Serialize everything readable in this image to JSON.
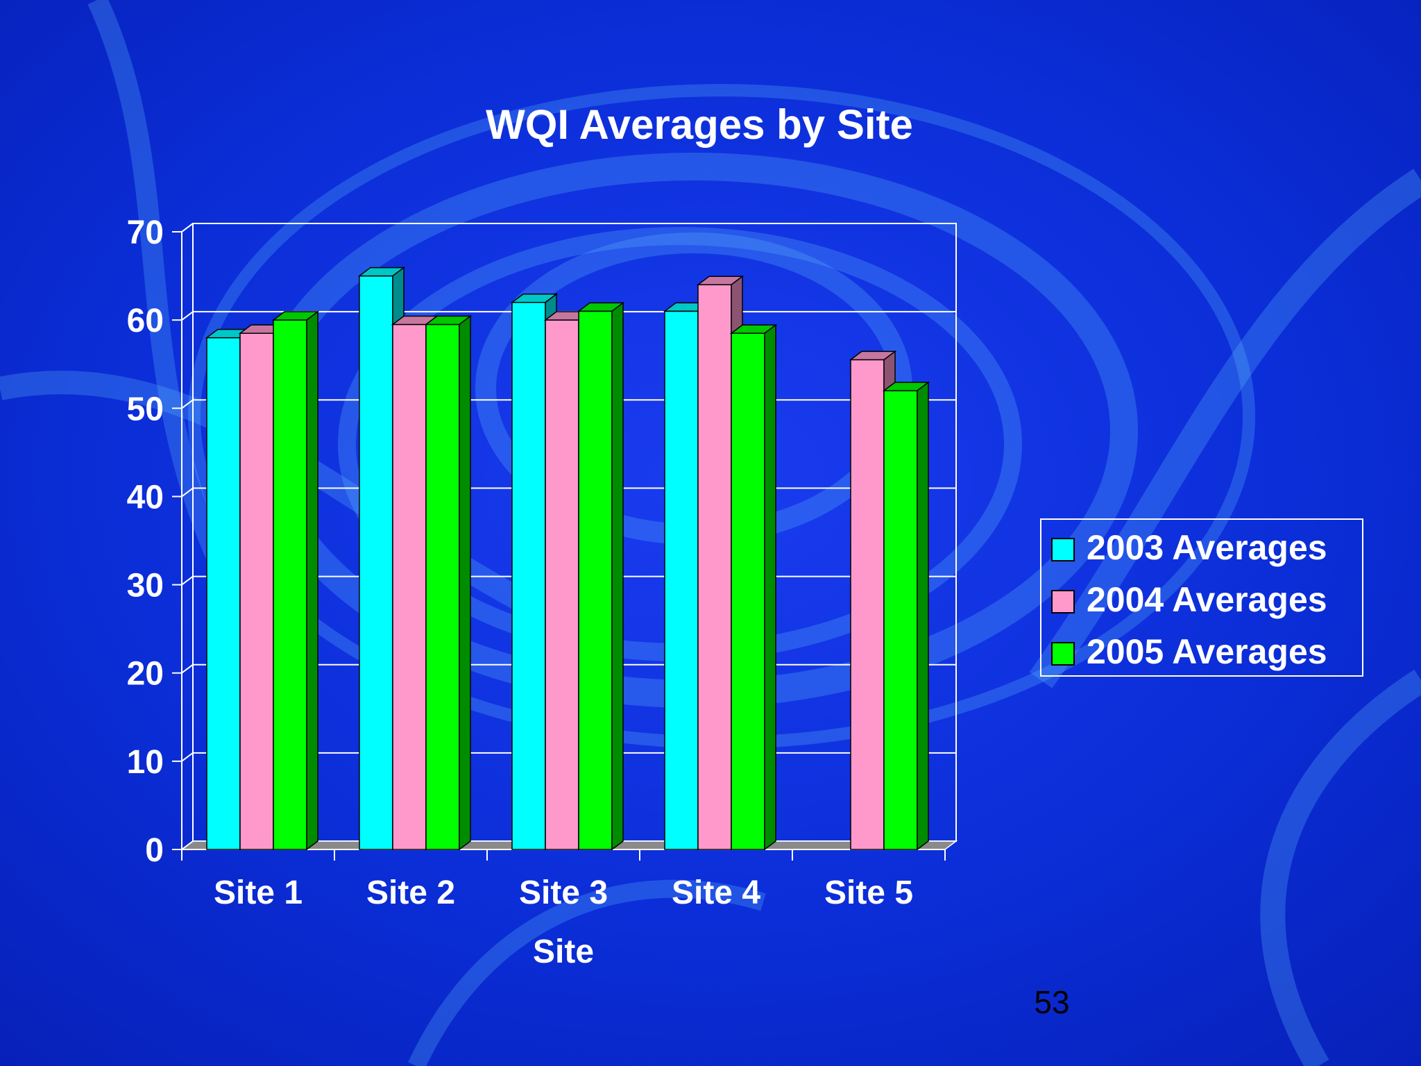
{
  "slide": {
    "page_number": "53",
    "background_color": "#0a2fd0"
  },
  "chart_data": {
    "type": "bar",
    "style": "3d-clustered-column",
    "title": "WQI Averages by Site",
    "xlabel": "Site",
    "ylabel": "",
    "categories": [
      "Site 1",
      "Site 2",
      "Site 3",
      "Site 4",
      "Site 5"
    ],
    "ylim": [
      0,
      70
    ],
    "yticks": [
      0,
      10,
      20,
      30,
      40,
      50,
      60,
      70
    ],
    "grid": true,
    "legend_position": "right",
    "series": [
      {
        "name": "2003 Averages",
        "color": "#00ffff",
        "values": [
          58,
          65,
          62,
          61,
          null
        ]
      },
      {
        "name": "2004 Averages",
        "color": "#ff99cc",
        "values": [
          58.5,
          59.5,
          60,
          64,
          55.5
        ]
      },
      {
        "name": "2005 Averages",
        "color": "#00ff00",
        "values": [
          60,
          59.5,
          61,
          58.5,
          52
        ]
      }
    ]
  }
}
